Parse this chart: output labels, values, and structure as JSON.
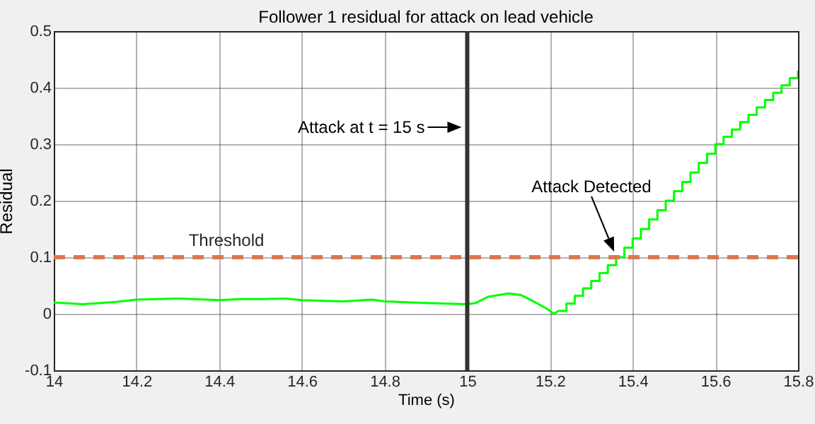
{
  "chart_data": {
    "type": "line",
    "title": "Follower 1 residual for attack on lead vehicle",
    "xlabel": "Time (s)",
    "ylabel": "Residual",
    "xlim": [
      14,
      15.8
    ],
    "xticks": [
      14,
      14.2,
      14.4,
      14.6,
      14.8,
      15,
      15.2,
      15.4,
      15.6,
      15.8
    ],
    "ylim": [
      -0.1,
      0.5
    ],
    "yticks": [
      -0.1,
      0,
      0.1,
      0.2,
      0.3,
      0.4,
      0.5
    ],
    "grid": true,
    "series": [
      {
        "type": "line",
        "color": "#00ff00",
        "x": [
          14,
          14.07,
          14.15,
          14.2,
          14.3,
          14.4,
          14.45,
          14.5,
          14.56,
          14.6,
          14.7,
          14.77,
          14.8,
          14.9,
          15.0,
          15.02,
          15.05,
          15.1,
          15.13,
          15.16,
          15.19,
          15.21,
          15.22
        ],
        "values": [
          0.02,
          0.017,
          0.021,
          0.025,
          0.027,
          0.024,
          0.026,
          0.026,
          0.027,
          0.024,
          0.022,
          0.025,
          0.022,
          0.019,
          0.017,
          0.019,
          0.03,
          0.036,
          0.033,
          0.022,
          0.01,
          0.0,
          0.005
        ]
      },
      {
        "type": "step",
        "color": "#00ff00",
        "x": [
          15.22,
          15.24,
          15.26,
          15.28,
          15.3,
          15.32,
          15.34,
          15.36,
          15.38,
          15.4,
          15.42,
          15.44,
          15.46,
          15.48,
          15.5,
          15.52,
          15.54,
          15.56,
          15.58,
          15.6,
          15.62,
          15.64,
          15.66,
          15.68,
          15.7,
          15.72,
          15.74,
          15.76,
          15.78,
          15.8
        ],
        "values": [
          0.005,
          0.018,
          0.032,
          0.045,
          0.058,
          0.072,
          0.086,
          0.1,
          0.117,
          0.133,
          0.15,
          0.167,
          0.183,
          0.2,
          0.217,
          0.233,
          0.25,
          0.267,
          0.283,
          0.3,
          0.313,
          0.326,
          0.339,
          0.352,
          0.365,
          0.378,
          0.391,
          0.404,
          0.417,
          0.43
        ]
      }
    ],
    "ref_lines": [
      {
        "axis": "y",
        "value": 0.1,
        "label": "Threshold",
        "color": "#d9784f",
        "line_style": "dashed"
      },
      {
        "axis": "x",
        "value": 15,
        "color": "#333333",
        "line_style": "solid"
      }
    ],
    "annotations": [
      {
        "text": "Attack at t = 15 s",
        "x": 15,
        "y": 0.33
      },
      "Attack Detected"
    ]
  }
}
